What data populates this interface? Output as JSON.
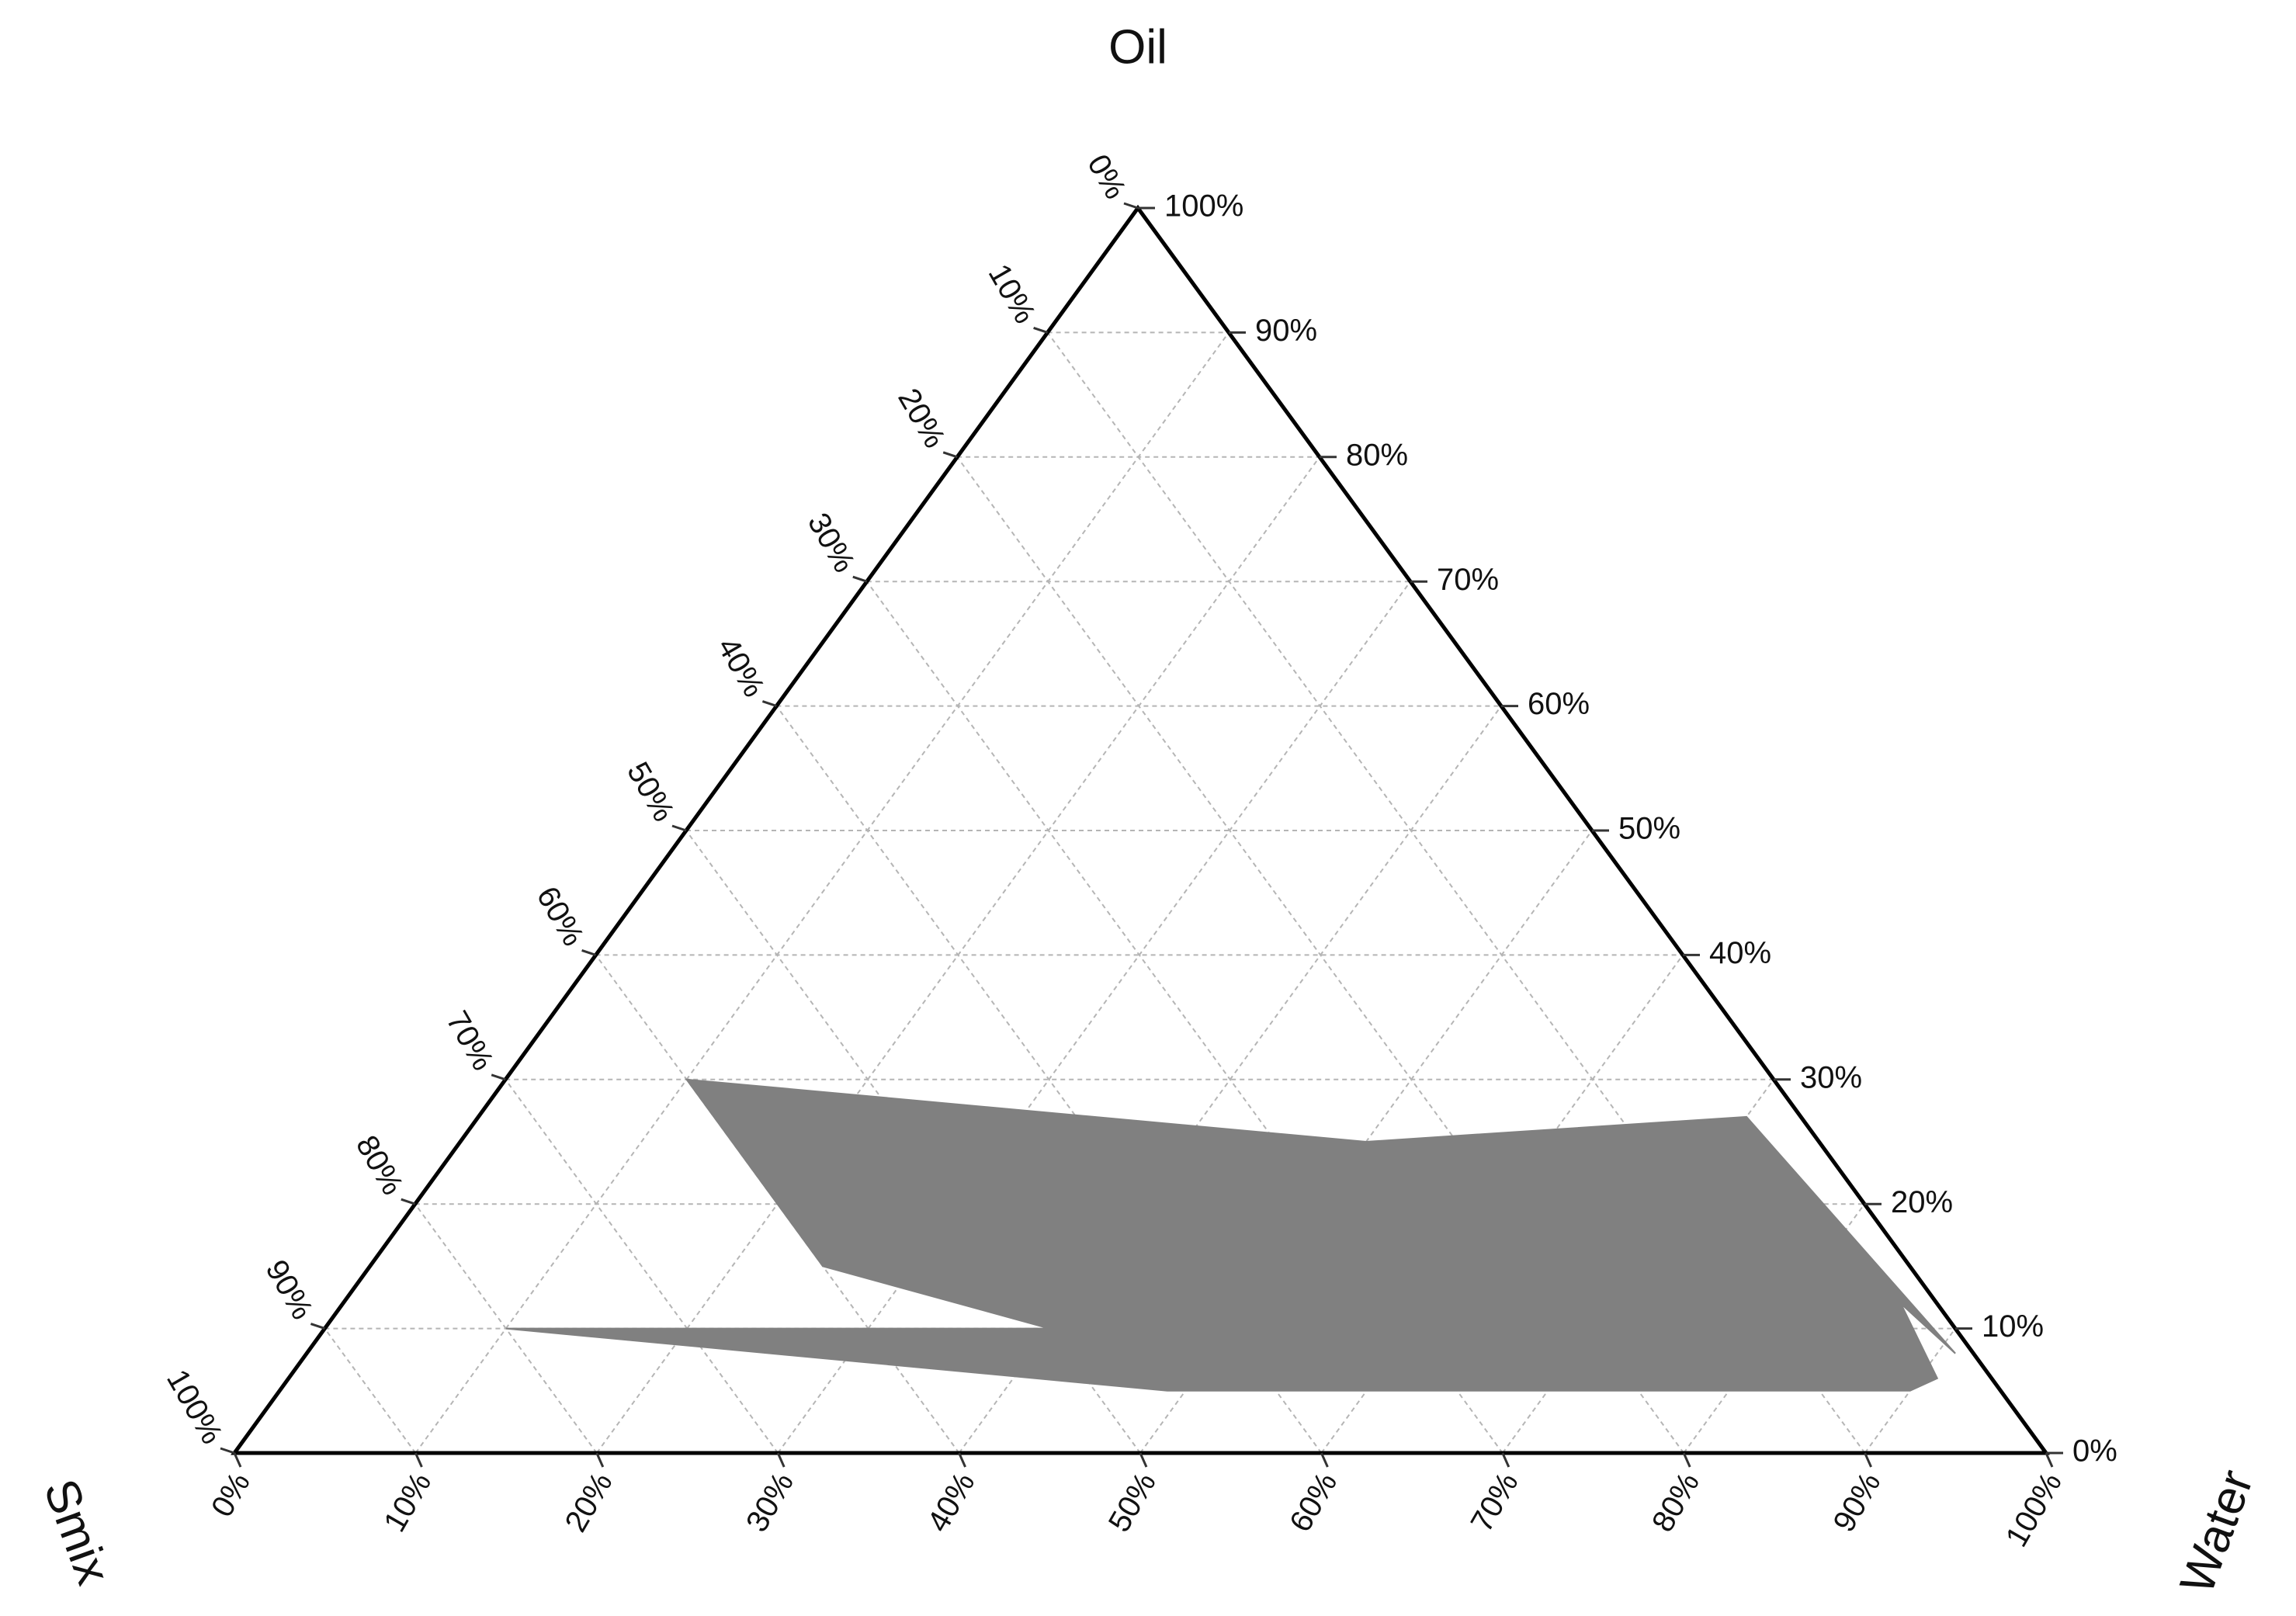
{
  "chart_data": {
    "type": "ternary",
    "axes": {
      "top": "Oil",
      "left": "Smix",
      "right": "Water"
    },
    "lim": [
      0,
      100
    ],
    "oil_ticks": [
      {
        "value": 0,
        "label": "0%"
      },
      {
        "value": 10,
        "label": "10%"
      },
      {
        "value": 20,
        "label": "20%"
      },
      {
        "value": 30,
        "label": "30%"
      },
      {
        "value": 40,
        "label": "40%"
      },
      {
        "value": 50,
        "label": "50%"
      },
      {
        "value": 60,
        "label": "60%"
      },
      {
        "value": 70,
        "label": "70%"
      },
      {
        "value": 80,
        "label": "80%"
      },
      {
        "value": 90,
        "label": "90%"
      },
      {
        "value": 100,
        "label": "100%"
      }
    ],
    "water_ticks": [
      {
        "value": 0,
        "label": "0%"
      },
      {
        "value": 10,
        "label": "10%"
      },
      {
        "value": 20,
        "label": "20%"
      },
      {
        "value": 30,
        "label": "30%"
      },
      {
        "value": 40,
        "label": "40%"
      },
      {
        "value": 50,
        "label": "50%"
      },
      {
        "value": 60,
        "label": "60%"
      },
      {
        "value": 70,
        "label": "70%"
      },
      {
        "value": 80,
        "label": "80%"
      },
      {
        "value": 90,
        "label": "90%"
      },
      {
        "value": 100,
        "label": "100%"
      }
    ],
    "smix_ticks": [
      {
        "value": 0,
        "label": "0%"
      },
      {
        "value": 10,
        "label": "10%"
      },
      {
        "value": 20,
        "label": "20%"
      },
      {
        "value": 30,
        "label": "30%"
      },
      {
        "value": 40,
        "label": "40%"
      },
      {
        "value": 50,
        "label": "50%"
      },
      {
        "value": 60,
        "label": "60%"
      },
      {
        "value": 70,
        "label": "70%"
      },
      {
        "value": 80,
        "label": "80%"
      },
      {
        "value": 90,
        "label": "90%"
      },
      {
        "value": 100,
        "label": "100%"
      }
    ],
    "grid": true,
    "region": {
      "color": "#808080",
      "oil": [
        30,
        25,
        27,
        8,
        12,
        6,
        5,
        5,
        10,
        10,
        15
      ],
      "water": [
        10,
        50,
        70,
        91,
        86,
        91,
        90,
        49,
        10,
        40,
        25
      ],
      "smix": [
        60,
        25,
        3,
        1,
        2,
        3,
        5,
        46,
        80,
        50,
        60
      ]
    }
  }
}
